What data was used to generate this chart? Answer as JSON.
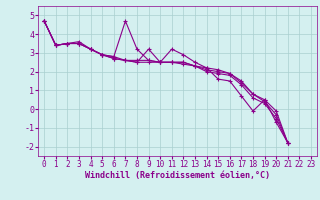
{
  "xlabel": "Windchill (Refroidissement éolien,°C)",
  "bg_color": "#d4f0f0",
  "line_color": "#8b008b",
  "grid_color": "#aad0d0",
  "series": [
    [
      4.7,
      3.4,
      3.5,
      3.6,
      3.2,
      2.9,
      2.7,
      2.6,
      2.5,
      3.2,
      2.5,
      3.2,
      2.9,
      2.5,
      2.2,
      1.6,
      1.5,
      0.7,
      -0.1,
      0.5,
      -0.7,
      -1.8
    ],
    [
      4.7,
      3.4,
      3.5,
      3.5,
      3.2,
      2.9,
      2.7,
      2.6,
      2.6,
      2.6,
      2.5,
      2.5,
      2.4,
      2.3,
      2.2,
      2.1,
      1.9,
      1.5,
      0.8,
      0.5,
      -0.1,
      -1.8
    ],
    [
      4.7,
      3.4,
      3.5,
      3.5,
      3.2,
      2.9,
      2.8,
      2.6,
      2.5,
      2.5,
      2.5,
      2.5,
      2.5,
      2.3,
      2.1,
      2.0,
      1.9,
      1.4,
      0.8,
      0.4,
      -0.3,
      -1.8
    ],
    [
      4.7,
      3.4,
      3.5,
      3.5,
      3.2,
      2.9,
      2.8,
      4.7,
      3.2,
      2.6,
      2.5,
      2.5,
      2.5,
      2.3,
      2.0,
      1.9,
      1.8,
      1.3,
      0.6,
      0.3,
      -0.5,
      -1.8
    ]
  ],
  "xlim": [
    -0.5,
    23.5
  ],
  "ylim": [
    -2.5,
    5.5
  ],
  "yticks": [
    -2,
    -1,
    0,
    1,
    2,
    3,
    4,
    5
  ],
  "xticks": [
    0,
    1,
    2,
    3,
    4,
    5,
    6,
    7,
    8,
    9,
    10,
    11,
    12,
    13,
    14,
    15,
    16,
    17,
    18,
    19,
    20,
    21,
    22,
    23
  ],
  "marker": "+",
  "linewidth": 0.8,
  "markersize": 3.5,
  "markeredgewidth": 0.8,
  "xlabel_fontsize": 6.0,
  "tick_fontsize": 5.5
}
